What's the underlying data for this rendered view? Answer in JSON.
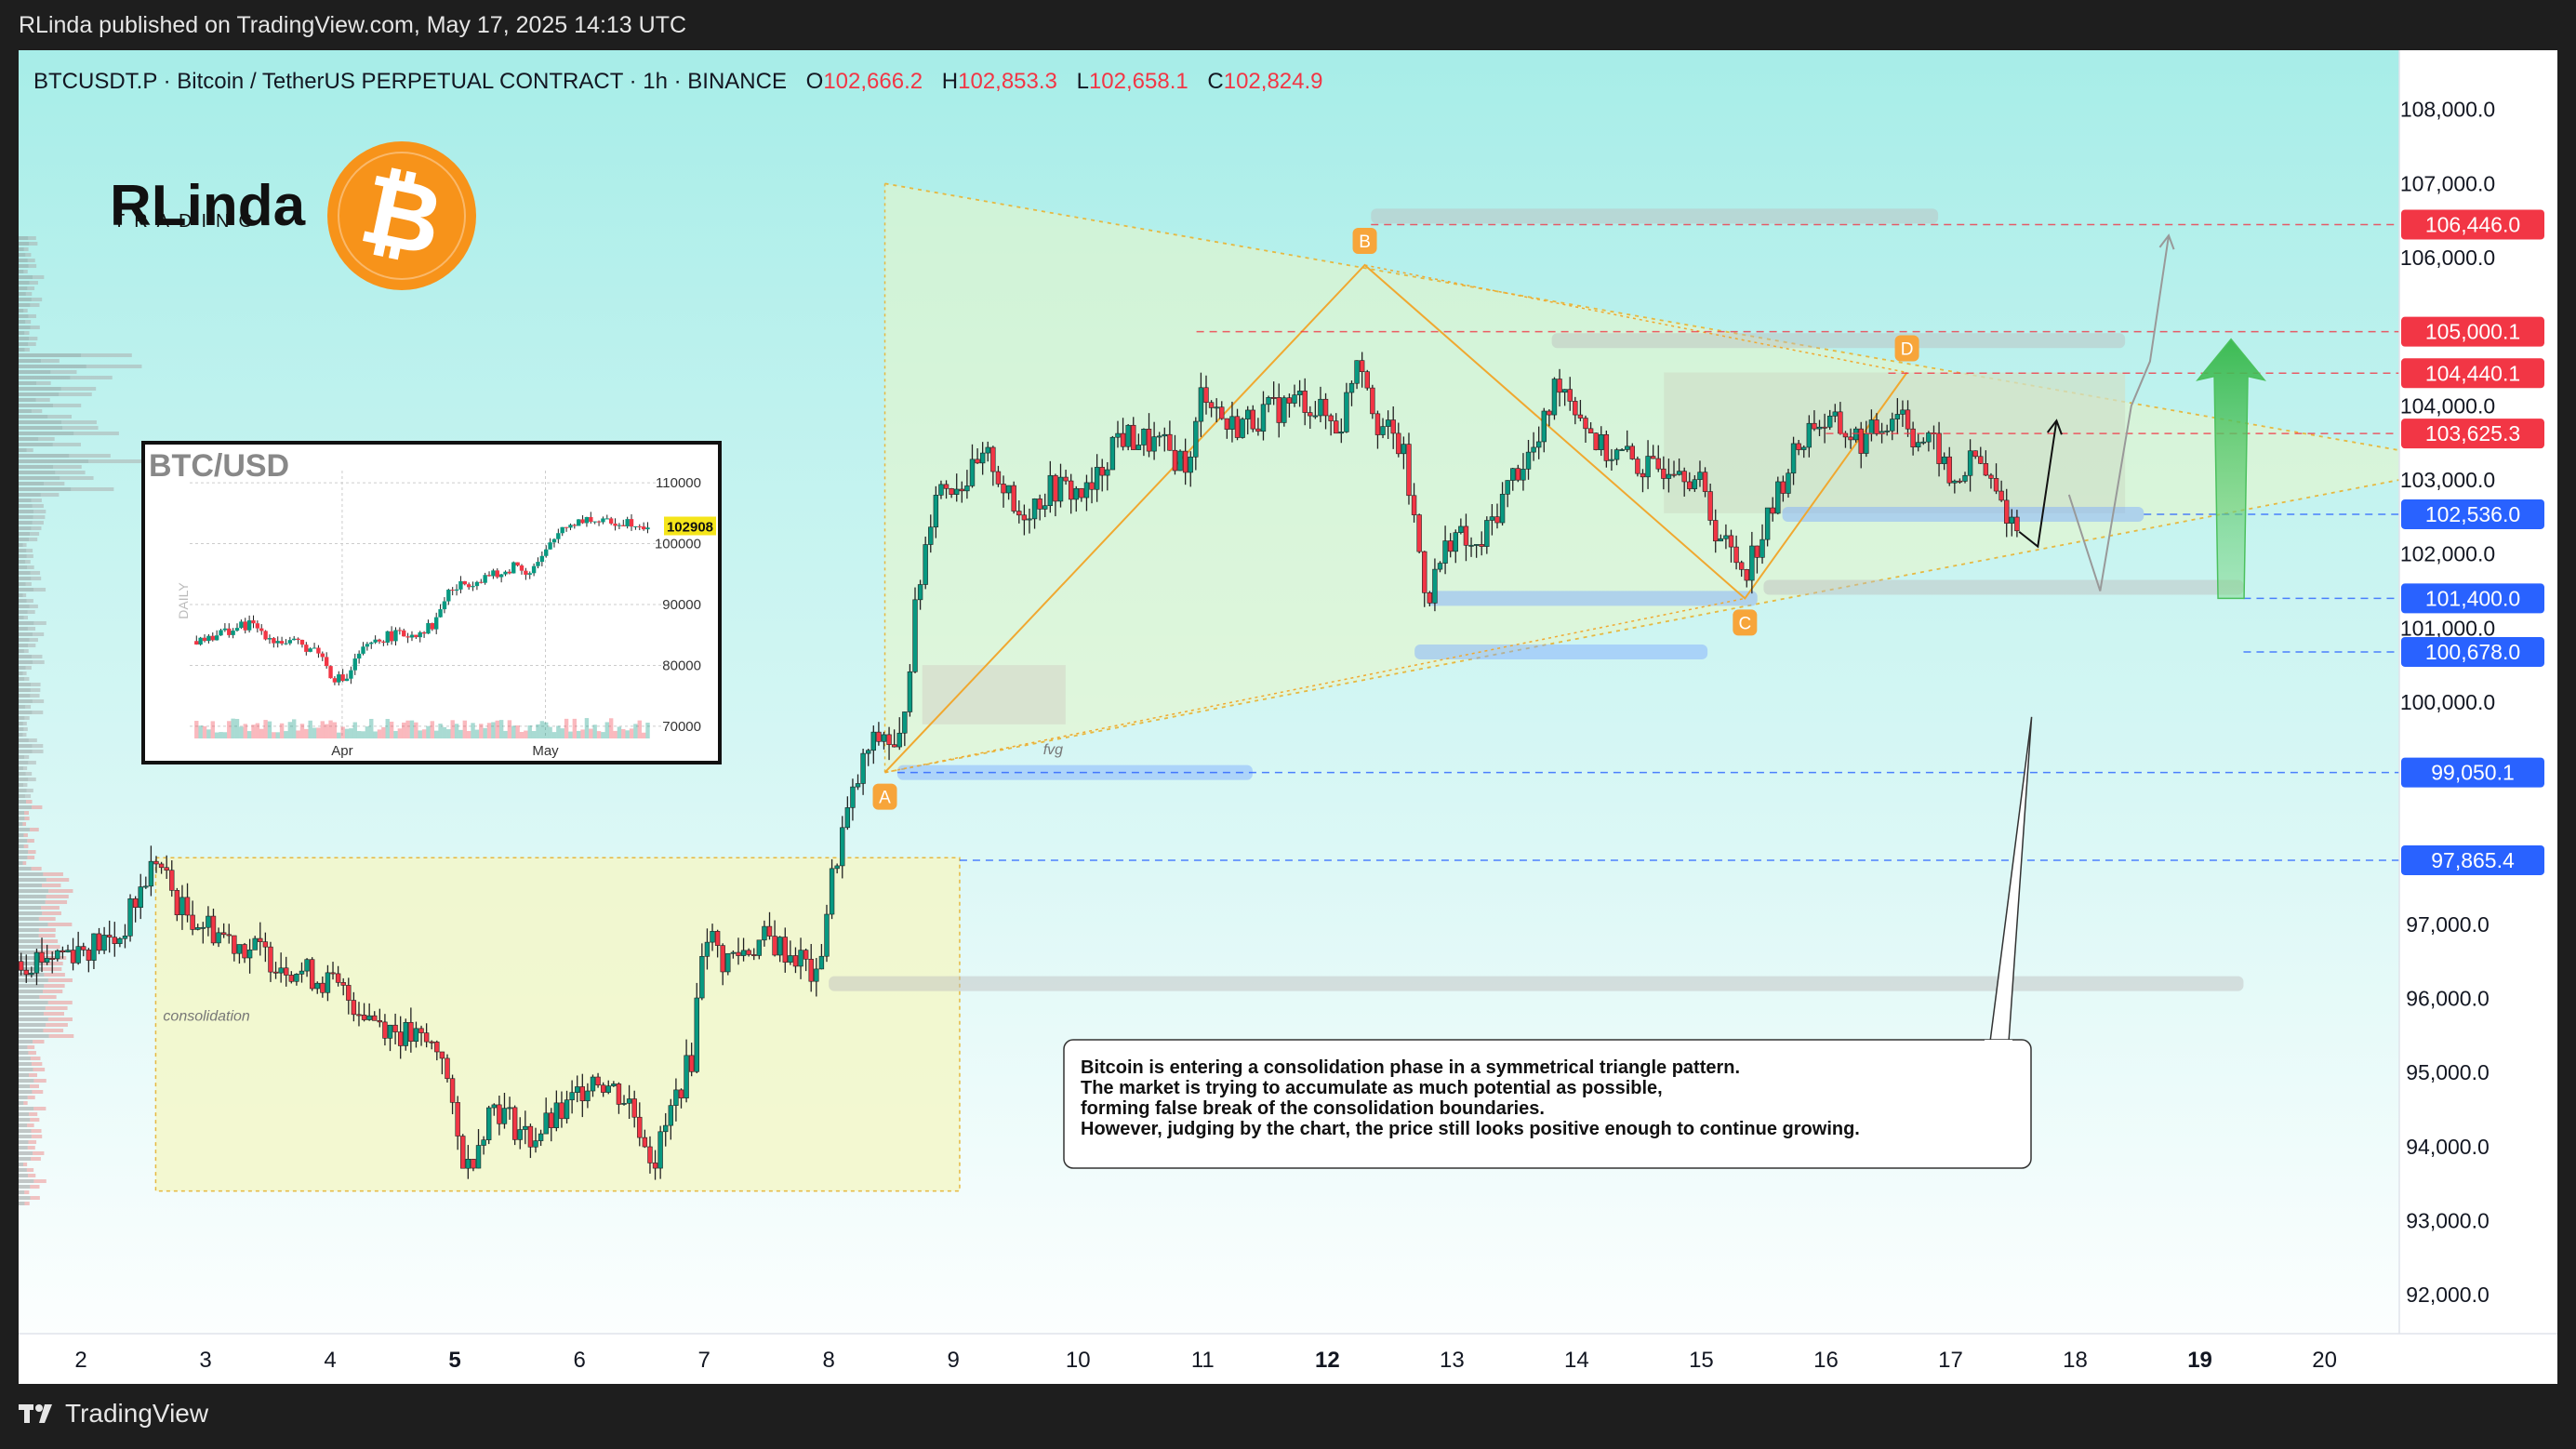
{
  "header": {
    "published_text": "RLinda published on TradingView.com, May 17, 2025 14:13 UTC"
  },
  "legend": {
    "symbol": "BTCUSDT.P · Bitcoin / TetherUS PERPETUAL CONTRACT · 1h · BINANCE",
    "open_label": "O",
    "open": "102,666.2",
    "high_label": "H",
    "high": "102,853.3",
    "low_label": "L",
    "low": "102,658.1",
    "close_label": "C",
    "close": "102,824.9"
  },
  "logo": {
    "brand_main": "RLinda",
    "brand_sub": "TRADING"
  },
  "footer": {
    "brand": "TradingView"
  },
  "colors": {
    "up": "#089981",
    "down": "#f23645",
    "bg_top": "#a7ede8",
    "bg_bottom": "#ffffff",
    "accent_orange": "#f7931a",
    "price_red": "#f23645",
    "price_blue": "#2962ff"
  },
  "chart_data": [
    {
      "type": "candlestick",
      "title": "",
      "timeframe": "1h",
      "xlabel": "",
      "ylabel": "",
      "x_ticks": [
        "2",
        "3",
        "4",
        "5",
        "6",
        "7",
        "8",
        "9",
        "10",
        "11",
        "12",
        "13",
        "14",
        "15",
        "16",
        "17",
        "18",
        "19",
        "20"
      ],
      "x_ticks_bold": [
        "5",
        "12",
        "19"
      ],
      "y_ticks": [
        "108,000.0",
        "107,000.0",
        "106,000.0",
        "104,000.0",
        "103,000.0",
        "102,000.0",
        "101,000.0",
        "100,000.0",
        "97,000.0",
        "96,000.0",
        "95,000.0",
        "94,000.0",
        "93,000.0",
        "92,000.0"
      ],
      "ylim": [
        91500,
        108800
      ],
      "xlim": [
        1.5,
        20.6
      ],
      "price_labels": [
        {
          "value": 106446.0,
          "text": "106,446.0",
          "color": "red"
        },
        {
          "value": 105000.1,
          "text": "105,000.1",
          "color": "red"
        },
        {
          "value": 104440.1,
          "text": "104,440.1",
          "color": "red"
        },
        {
          "value": 103625.3,
          "text": "103,625.3",
          "color": "red"
        },
        {
          "value": 102536.0,
          "text": "102,536.0",
          "color": "blue"
        },
        {
          "value": 101400.0,
          "text": "101,400.0",
          "color": "blue"
        },
        {
          "value": 100678.0,
          "text": "100,678.0",
          "color": "blue"
        },
        {
          "value": 99050.1,
          "text": "99,050.1",
          "color": "blue"
        },
        {
          "value": 97865.4,
          "text": "97,865.4",
          "color": "blue"
        }
      ],
      "close_path": [
        [
          1.5,
          96500
        ],
        [
          2.3,
          96800
        ],
        [
          2.6,
          97900
        ],
        [
          2.8,
          97200
        ],
        [
          3.2,
          96800
        ],
        [
          3.6,
          96500
        ],
        [
          4.0,
          96200
        ],
        [
          4.3,
          95800
        ],
        [
          4.6,
          95500
        ],
        [
          4.9,
          95300
        ],
        [
          5.0,
          94200
        ],
        [
          5.1,
          93700
        ],
        [
          5.3,
          94600
        ],
        [
          5.6,
          94100
        ],
        [
          5.9,
          94500
        ],
        [
          6.1,
          95000
        ],
        [
          6.4,
          94600
        ],
        [
          6.6,
          93800
        ],
        [
          6.8,
          94800
        ],
        [
          6.9,
          95200
        ],
        [
          7.0,
          97000
        ],
        [
          7.15,
          96500
        ],
        [
          7.5,
          96800
        ],
        [
          7.8,
          96500
        ],
        [
          7.9,
          96200
        ],
        [
          8.0,
          97400
        ],
        [
          8.1,
          98200
        ],
        [
          8.3,
          99300
        ],
        [
          8.45,
          99600
        ],
        [
          8.55,
          99200
        ],
        [
          8.7,
          101300
        ],
        [
          8.85,
          102900
        ],
        [
          9.1,
          103000
        ],
        [
          9.3,
          103300
        ],
        [
          9.5,
          102500
        ],
        [
          9.8,
          102900
        ],
        [
          10.1,
          102800
        ],
        [
          10.3,
          103600
        ],
        [
          10.6,
          103500
        ],
        [
          10.9,
          103200
        ],
        [
          11.0,
          104300
        ],
        [
          11.2,
          103700
        ],
        [
          11.5,
          103900
        ],
        [
          11.8,
          104100
        ],
        [
          12.1,
          103700
        ],
        [
          12.25,
          104800
        ],
        [
          12.4,
          103800
        ],
        [
          12.6,
          103400
        ],
        [
          12.7,
          102400
        ],
        [
          12.8,
          101400
        ],
        [
          13.0,
          102300
        ],
        [
          13.2,
          102000
        ],
        [
          13.5,
          103100
        ],
        [
          13.7,
          103500
        ],
        [
          13.85,
          104400
        ],
        [
          14.0,
          104000
        ],
        [
          14.2,
          103400
        ],
        [
          14.4,
          103300
        ],
        [
          14.6,
          103100
        ],
        [
          14.8,
          103300
        ],
        [
          15.0,
          102900
        ],
        [
          15.1,
          102400
        ],
        [
          15.2,
          102100
        ],
        [
          15.35,
          101800
        ],
        [
          15.5,
          102300
        ],
        [
          15.7,
          103200
        ],
        [
          15.9,
          103800
        ],
        [
          16.1,
          103700
        ],
        [
          16.3,
          103500
        ],
        [
          16.6,
          104000
        ],
        [
          16.7,
          103600
        ],
        [
          16.9,
          103400
        ],
        [
          17.0,
          102900
        ],
        [
          17.2,
          103300
        ],
        [
          17.4,
          102700
        ],
        [
          17.55,
          102300
        ]
      ],
      "projections": [
        {
          "name": "",
          "points": [
            [
              17.55,
              102300
            ],
            [
              17.7,
              102100
            ],
            [
              17.85,
              103800
            ]
          ]
        },
        {
          "name": "",
          "points": [
            [
              17.95,
              102800
            ],
            [
              18.2,
              101500
            ],
            [
              18.45,
              104000
            ],
            [
              18.6,
              104600
            ],
            [
              18.75,
              106300
            ]
          ]
        }
      ],
      "abcd_pattern": {
        "A": {
          "x": 8.45,
          "y": 99050
        },
        "B": {
          "x": 12.3,
          "y": 105900
        },
        "C": {
          "x": 15.35,
          "y": 101400
        },
        "D": {
          "x": 16.65,
          "y": 104450
        }
      },
      "triangle": {
        "upper_line": [
          [
            8.45,
            107000
          ],
          [
            20.6,
            103400
          ]
        ],
        "lower_line": [
          [
            8.45,
            99050
          ],
          [
            20.6,
            103000
          ]
        ]
      },
      "zones": [
        {
          "label": "consolidation",
          "x": [
            2.6,
            9.05
          ],
          "y": [
            93400,
            97900
          ]
        },
        {
          "label": "fvg",
          "x": [
            8.75,
            9.9
          ],
          "y": [
            99700,
            100500
          ]
        },
        {
          "label": "",
          "x": [
            14.7,
            18.4
          ],
          "y": [
            102550,
            104450
          ]
        }
      ],
      "support_bands": [
        {
          "x": [
            12.8,
            15.45
          ],
          "y": 101400
        },
        {
          "x": [
            12.7,
            15.05
          ],
          "y": 100678
        },
        {
          "x": [
            8.55,
            11.4
          ],
          "y": 99050
        },
        {
          "x": [
            15.65,
            18.55
          ],
          "y": 102536
        },
        {
          "x": [
            8.0,
            19.35
          ],
          "y": 96200
        },
        {
          "x": [
            15.5,
            19.35
          ],
          "y": 101550
        },
        {
          "x": [
            12.35,
            16.9
          ],
          "y": 106560
        },
        {
          "x": [
            13.8,
            18.4
          ],
          "y": 104880
        }
      ],
      "annotation": "Bitcoin is entering a consolidation phase in a symmetrical triangle pattern.\nThe market is trying to accumulate as much potential as possible,\nforming false break of the consolidation boundaries.\nHowever, judging by the chart, the price still looks positive enough to continue growing."
    },
    {
      "type": "candlestick",
      "title": "BTC/USD",
      "timeframe_label": "DAILY",
      "x_ticks": [
        "Apr",
        "May"
      ],
      "y_ticks": [
        "110000",
        "100000",
        "90000",
        "80000",
        "70000"
      ],
      "ylim": [
        68000,
        112000
      ],
      "last_price": "102908",
      "close_path": [
        [
          0,
          84000
        ],
        [
          0.1,
          85500
        ],
        [
          0.18,
          86800
        ],
        [
          0.25,
          84200
        ],
        [
          0.32,
          83400
        ],
        [
          0.38,
          82500
        ],
        [
          0.42,
          78200
        ],
        [
          0.46,
          77500
        ],
        [
          0.5,
          82000
        ],
        [
          0.58,
          84800
        ],
        [
          0.66,
          85200
        ],
        [
          0.72,
          86600
        ],
        [
          0.76,
          92000
        ],
        [
          0.82,
          93600
        ],
        [
          0.88,
          94800
        ],
        [
          0.92,
          94600
        ],
        [
          0.96,
          96800
        ],
        [
          1.0,
          95300
        ],
        [
          1.04,
          97500
        ],
        [
          1.1,
          102800
        ],
        [
          1.17,
          104200
        ],
        [
          1.22,
          103400
        ],
        [
          1.3,
          103700
        ],
        [
          1.36,
          102908
        ]
      ]
    }
  ]
}
